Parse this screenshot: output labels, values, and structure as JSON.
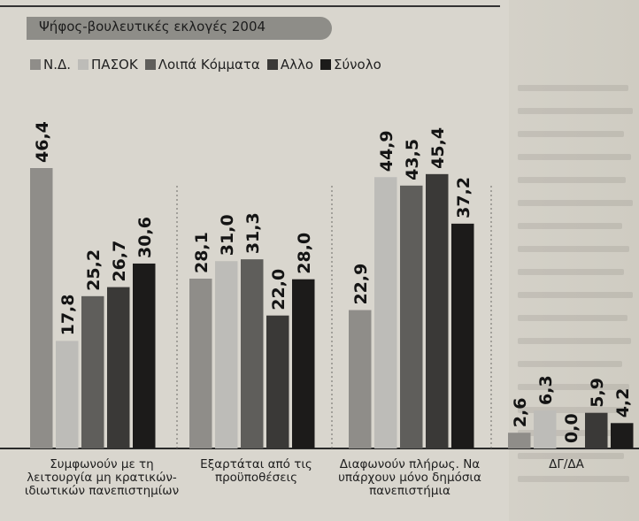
{
  "chart_data": {
    "type": "bar",
    "title": "Ψήφος-βουλευτικές εκλογές 2004",
    "categories": [
      "Συμφωνούν με τη λειτουργία μη κρατικών-ιδιωτικών πανεπιστημίων",
      "Εξαρτάται από τις προϋποθέσεις",
      "Διαφωνούν πλήρως. Να υπάρχουν μόνο δημόσια πανεπιστήμια",
      "ΔΓ/ΔΑ"
    ],
    "series": [
      {
        "name": "Ν.Δ.",
        "color": "#8f8d89",
        "values": [
          46.4,
          28.1,
          22.9,
          2.6
        ]
      },
      {
        "name": "ΠΑΣΟΚ",
        "color": "#bdbcb8",
        "values": [
          17.8,
          31.0,
          44.9,
          6.3
        ]
      },
      {
        "name": "Λοιπά Κόμματα",
        "color": "#5f5e5b",
        "values": [
          25.2,
          31.3,
          43.5,
          0.0
        ]
      },
      {
        "name": "Αλλο",
        "color": "#3a3937",
        "values": [
          26.7,
          22.0,
          45.4,
          5.9
        ]
      },
      {
        "name": "Σύνολο",
        "color": "#1c1b1a",
        "values": [
          30.6,
          28.0,
          37.2,
          4.2
        ]
      }
    ],
    "value_labels": [
      [
        "46,4",
        "28,1",
        "22,9",
        "2,6"
      ],
      [
        "17,8",
        "31,0",
        "44,9",
        "6,3"
      ],
      [
        "25,2",
        "31,3",
        "43,5",
        "0,0"
      ],
      [
        "26,7",
        "22,0",
        "45,4",
        "5,9"
      ],
      [
        "30,6",
        "28,0",
        "37,2",
        "4,2"
      ]
    ],
    "ylim": [
      0,
      50
    ],
    "legend_position": "top-left",
    "grid": false
  }
}
